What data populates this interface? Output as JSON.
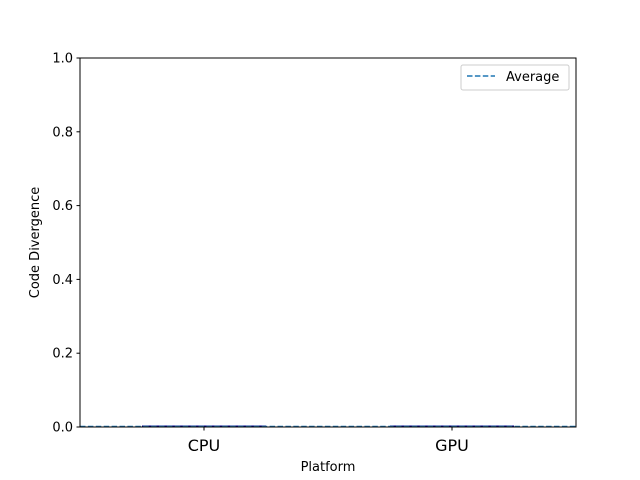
{
  "chart_data": {
    "type": "bar",
    "categories": [
      "CPU",
      "GPU"
    ],
    "series": [
      {
        "values": [
          0,
          0
        ],
        "color": "#00008b"
      }
    ],
    "average": {
      "label": "Average",
      "value": 0,
      "color": "#1f77b4",
      "style": "dashed"
    },
    "title": "",
    "xlabel": "Platform",
    "ylabel": "Code Divergence",
    "ylim": [
      0,
      1.0
    ],
    "yticks": [
      "0.0",
      "0.2",
      "0.4",
      "0.6",
      "0.8",
      "1.0"
    ],
    "grid": false,
    "legend_position": "top-right"
  }
}
